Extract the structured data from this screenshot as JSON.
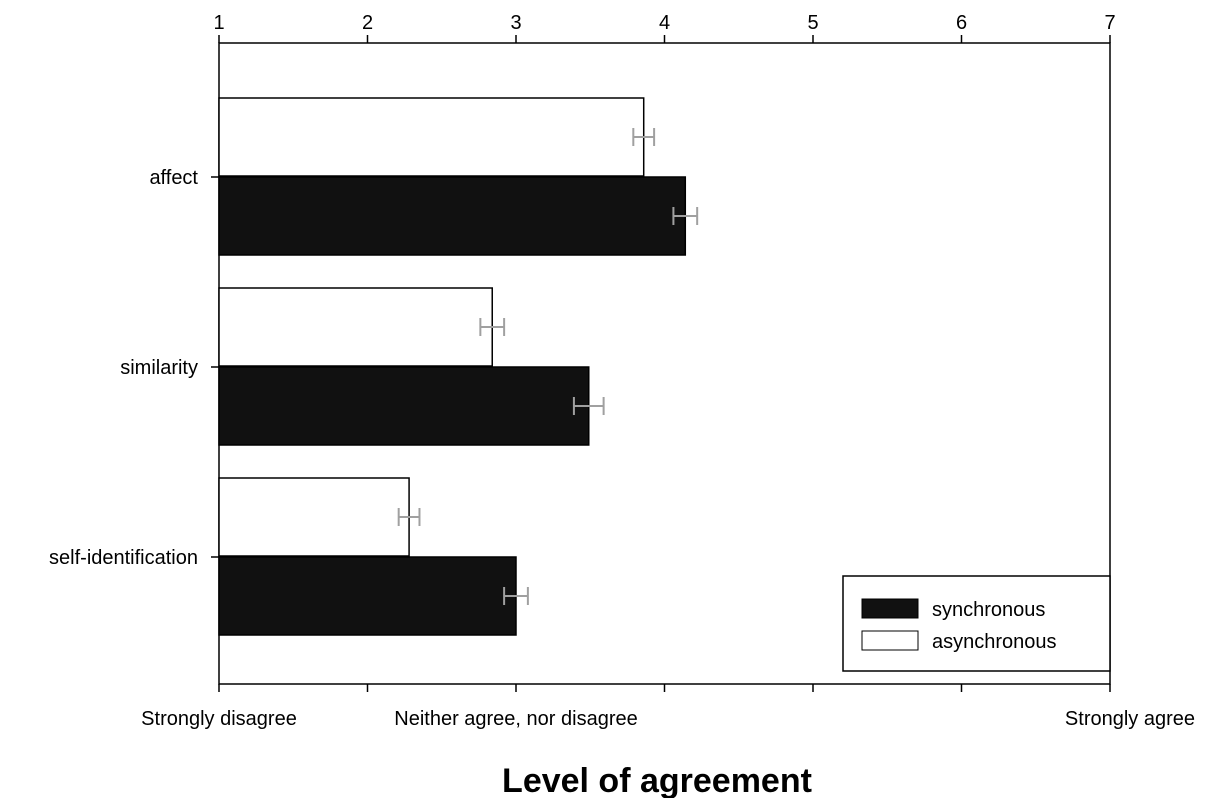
{
  "chart_data": {
    "type": "bar",
    "orientation": "horizontal",
    "xlabel": "Level of agreement",
    "xlim": [
      1,
      7
    ],
    "x_ticks": [
      "1",
      "2",
      "3",
      "4",
      "5",
      "6",
      "7"
    ],
    "x_anchor_labels": [
      {
        "value": 1,
        "text": "Strongly disagree"
      },
      {
        "value": 3,
        "text": "Neither agree, nor disagree"
      },
      {
        "value": 7,
        "text": "Strongly agree"
      }
    ],
    "categories": [
      "affect",
      "similarity",
      "self-identification"
    ],
    "series": [
      {
        "name": "synchronous",
        "color": "#111111",
        "values": [
          4.14,
          3.49,
          3.0
        ],
        "errors": [
          0.08,
          0.1,
          0.08
        ]
      },
      {
        "name": "asynchronous",
        "color": "#ffffff",
        "values": [
          3.86,
          2.84,
          2.28
        ],
        "errors": [
          0.07,
          0.08,
          0.07
        ]
      }
    ],
    "error_bar_color": "#a0a0a0",
    "legend": {
      "placement": "bottom-right",
      "items": [
        "synchronous",
        "asynchronous"
      ]
    },
    "grid": false
  }
}
